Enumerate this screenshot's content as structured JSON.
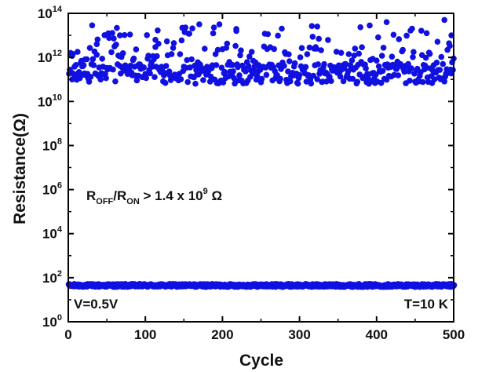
{
  "chart_data": {
    "type": "scatter",
    "xlabel": "Cycle",
    "ylabel": "Resistance(Ω)",
    "xlim": [
      0,
      500
    ],
    "ylim_log10": [
      0,
      14
    ],
    "y_scale": "log",
    "x_ticks": [
      "0",
      "100",
      "200",
      "300",
      "400",
      "500"
    ],
    "y_ticks": [
      {
        "base": "10",
        "exp": "0"
      },
      {
        "base": "10",
        "exp": "2"
      },
      {
        "base": "10",
        "exp": "4"
      },
      {
        "base": "10",
        "exp": "6"
      },
      {
        "base": "10",
        "exp": "8"
      },
      {
        "base": "10",
        "exp": "10"
      },
      {
        "base": "10",
        "exp": "12"
      },
      {
        "base": "10",
        "exp": "14"
      }
    ],
    "grid": false,
    "marker_color": "#1010e0",
    "series": [
      {
        "role": "high-resistance state (OFF)",
        "x_range": [
          1,
          500
        ],
        "n_points": 500,
        "y_log10_min": 10.8,
        "y_log10_max": 13.7,
        "y_log10_typical": 11.6,
        "sample_points": [
          {
            "x": 5,
            "y_log10": 11.0
          },
          {
            "x": 18,
            "y_log10": 11.2
          },
          {
            "x": 37,
            "y_log10": 12.6
          },
          {
            "x": 67,
            "y_log10": 13.0
          },
          {
            "x": 113,
            "y_log10": 12.8
          },
          {
            "x": 170,
            "y_log10": 13.5
          },
          {
            "x": 218,
            "y_log10": 13.2
          },
          {
            "x": 323,
            "y_log10": 13.4
          },
          {
            "x": 413,
            "y_log10": 13.6
          },
          {
            "x": 465,
            "y_log10": 13.1
          },
          {
            "x": 488,
            "y_log10": 13.7
          },
          {
            "x": 497,
            "y_log10": 13.0
          }
        ]
      },
      {
        "role": "low-resistance state (ON)",
        "x_range": [
          1,
          500
        ],
        "n_points": 500,
        "y_log10_min": 1.6,
        "y_log10_max": 1.7,
        "y_log10_typical": 1.65
      }
    ],
    "annotations": {
      "ratio": {
        "r1": "R",
        "r1_sub": "OFF",
        "slash": "/",
        "r2": "R",
        "r2_sub": "ON",
        "mid": " > 1.4 x 10",
        "exp": "9",
        "unit": " Ω"
      },
      "voltage": "V=0.5V",
      "temperature": "T=10 K"
    }
  }
}
